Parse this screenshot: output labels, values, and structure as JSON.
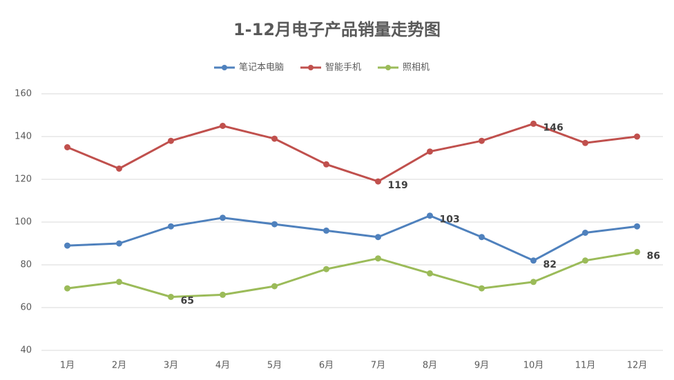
{
  "chart_data": {
    "type": "line",
    "title": "1-12月电子产品销量走势图",
    "categories": [
      "1月",
      "2月",
      "3月",
      "4月",
      "5月",
      "6月",
      "7月",
      "8月",
      "9月",
      "10月",
      "11月",
      "12月"
    ],
    "series": [
      {
        "name": "笔记本电脑",
        "color": "#4f81bd",
        "values": [
          89,
          90,
          98,
          102,
          99,
          96,
          93,
          103,
          93,
          82,
          95,
          98
        ],
        "label_points": [
          7,
          9
        ]
      },
      {
        "name": "智能手机",
        "color": "#c0504d",
        "values": [
          135,
          125,
          138,
          145,
          139,
          127,
          119,
          133,
          138,
          146,
          137,
          140
        ],
        "label_points": [
          6,
          9
        ]
      },
      {
        "name": "照相机",
        "color": "#9bbb59",
        "values": [
          69,
          72,
          65,
          66,
          70,
          78,
          83,
          76,
          69,
          72,
          82,
          86
        ],
        "label_points": [
          2,
          11
        ]
      }
    ],
    "ylim": [
      40,
      160
    ],
    "yticks": [
      40,
      60,
      80,
      100,
      120,
      140,
      160
    ],
    "grid": true,
    "legend": "top"
  }
}
